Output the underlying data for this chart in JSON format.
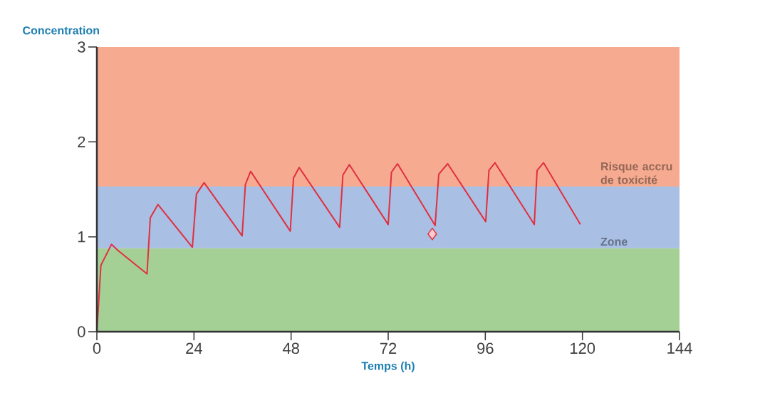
{
  "chart_data": {
    "type": "line",
    "ylabel": "Concentration",
    "xlabel": "Temps (h)",
    "xlim": [
      0,
      144
    ],
    "ylim": [
      0,
      3
    ],
    "xticks": [
      0,
      24,
      48,
      72,
      96,
      120,
      144
    ],
    "yticks": [
      0,
      1,
      2,
      3
    ],
    "grid": false,
    "legend": false,
    "series": [
      {
        "color": "#e03040",
        "marker": "none",
        "line_style": "solid",
        "x": [
          0,
          1,
          3.6,
          5.4,
          12.4,
          13.2,
          15.1,
          23.6,
          24.6,
          26.5,
          35.9,
          36.7,
          38,
          47.8,
          48.6,
          50,
          60,
          60.8,
          62.4,
          72,
          72.8,
          74.3,
          83.6,
          84.5,
          86.7,
          96.1,
          96.9,
          98.4,
          108.1,
          108.8,
          110.4,
          119.5
        ],
        "values": [
          0,
          0.7,
          0.92,
          0.85,
          0.61,
          1.2,
          1.34,
          0.89,
          1.45,
          1.57,
          1.01,
          1.55,
          1.69,
          1.06,
          1.62,
          1.73,
          1.1,
          1.65,
          1.76,
          1.13,
          1.68,
          1.77,
          1.12,
          1.66,
          1.77,
          1.16,
          1.7,
          1.78,
          1.13,
          1.7,
          1.78,
          1.13
        ]
      },
      {
        "type": "scatter",
        "color": "#e03040",
        "marker": "diamond",
        "x": [
          82.9
        ],
        "values": [
          1.03
        ]
      }
    ],
    "bands": [
      {
        "axis": "y",
        "from": 0,
        "to": 0.88,
        "color": "#a5d095"
      },
      {
        "axis": "y",
        "from": 0.88,
        "to": 1.53,
        "color": "#a9bfe3",
        "label": "Zone"
      },
      {
        "axis": "y",
        "from": 1.53,
        "to": 3,
        "color": "#f6ab90",
        "label": "Risque accru de toxicité"
      }
    ]
  }
}
